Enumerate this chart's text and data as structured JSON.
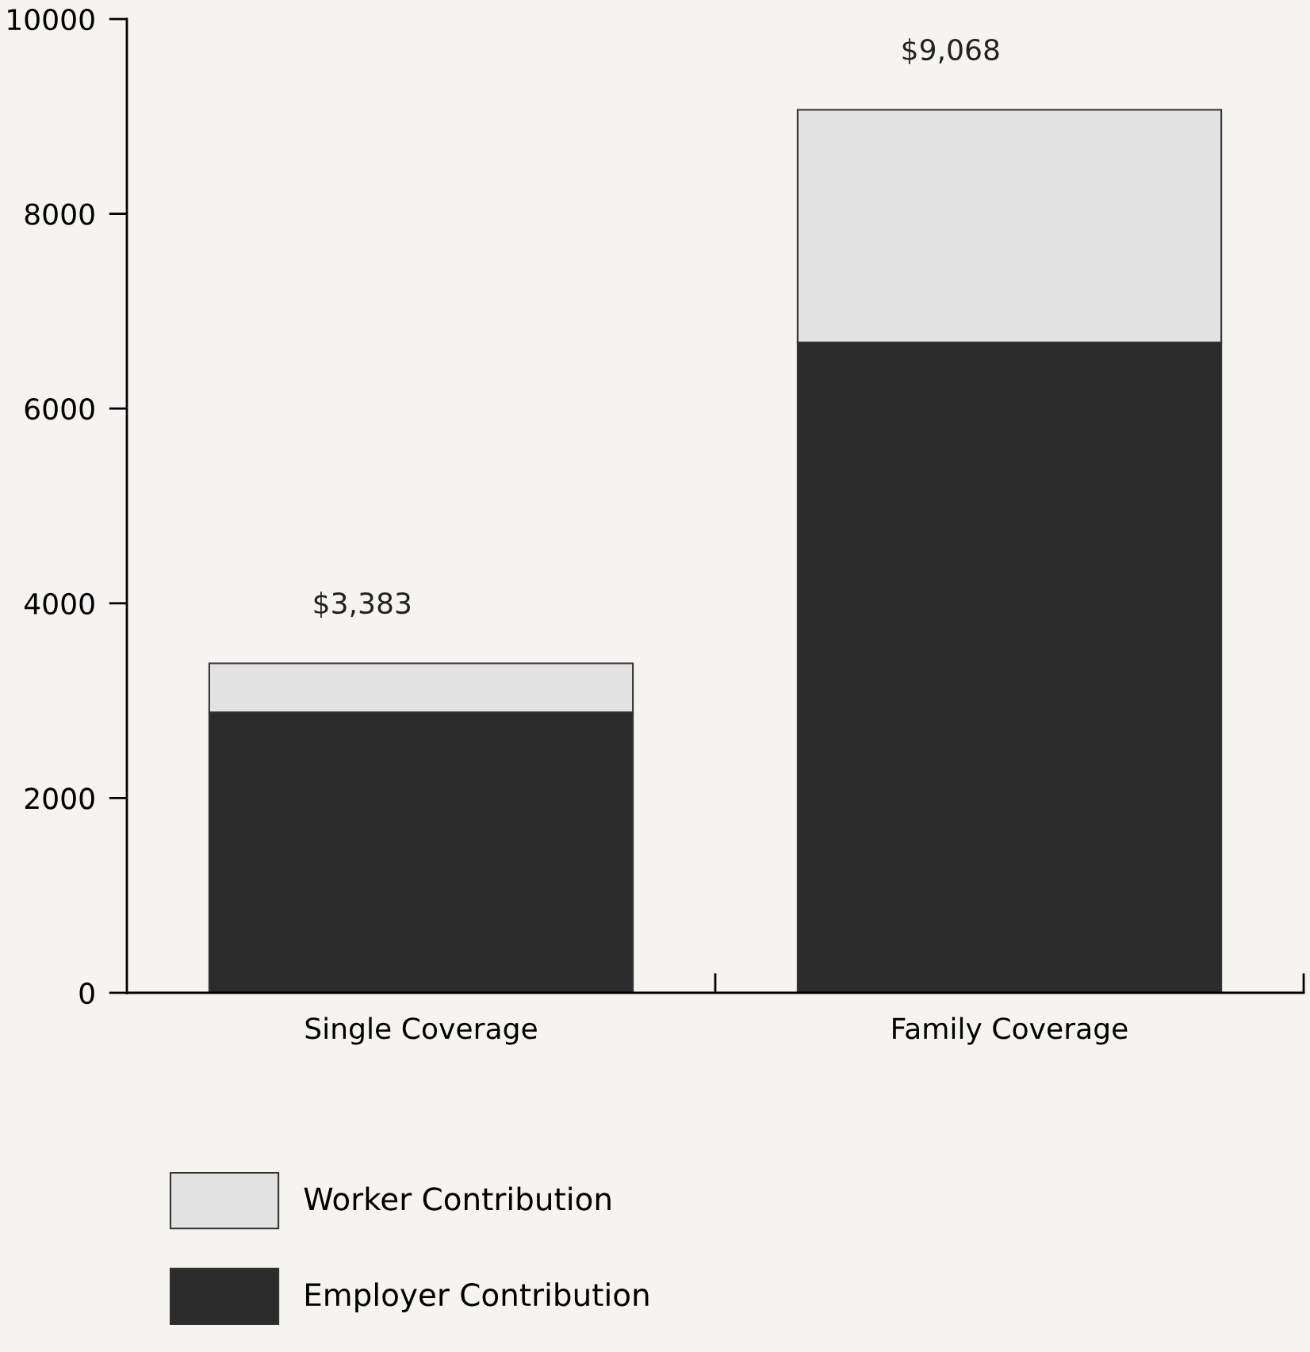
{
  "chart_data": {
    "type": "bar",
    "stacked": true,
    "categories": [
      "Single Coverage",
      "Family Coverage"
    ],
    "series": [
      {
        "name": "Employer Contribution",
        "color": "#2b2b2b",
        "values": [
          2880,
          6680
        ]
      },
      {
        "name": "Worker Contribution",
        "color": "#e2e2e2",
        "values": [
          503,
          2388
        ]
      }
    ],
    "totals": [
      "$3,383",
      "$9,068"
    ],
    "ylim": [
      0,
      10000
    ],
    "yticks": [
      0,
      2000,
      4000,
      6000,
      8000,
      10000
    ],
    "grid": false,
    "legend": "bottom left"
  }
}
